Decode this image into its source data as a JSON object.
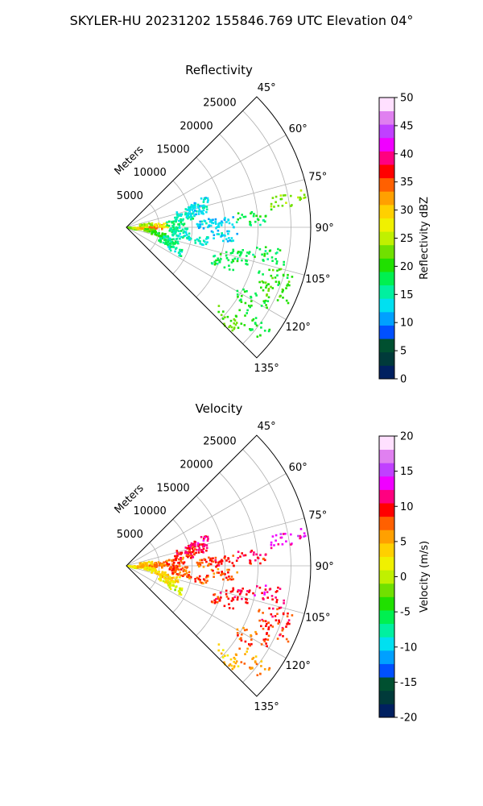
{
  "figure": {
    "title": "SKYLER-HU  20231202  155846.769 UTC Elevation 04°"
  },
  "chart_data": [
    {
      "type": "heatmap",
      "subtype": "polar-sector-ppi",
      "title": "Reflectivity",
      "r_label": "Meters",
      "r_ticks": [
        5000,
        10000,
        15000,
        20000,
        25000
      ],
      "r_lim": [
        0,
        28000
      ],
      "theta_ticks": [
        "45°",
        "60°",
        "75°",
        "90°",
        "105°",
        "120°",
        "135°"
      ],
      "theta_lim": [
        45,
        135
      ],
      "grid": true,
      "colorbar": {
        "label": "Reflectivity dBZ",
        "min": 0,
        "max": 50,
        "ticks": [
          0,
          5,
          10,
          15,
          20,
          25,
          30,
          35,
          40,
          45,
          50
        ],
        "colors": [
          "#002060",
          "#003a3a",
          "#005030",
          "#0050ff",
          "#00a0ff",
          "#00e0f0",
          "#00f0a0",
          "#00f050",
          "#20e000",
          "#70e000",
          "#c0f000",
          "#f0f000",
          "#ffd000",
          "#ffa000",
          "#ff6000",
          "#ff0000",
          "#ff0080",
          "#f000ff",
          "#c040ff",
          "#e080f0",
          "#ffe0ff"
        ]
      },
      "echoes": [
        {
          "azimuth": 100,
          "range": 1000,
          "value": 22
        },
        {
          "azimuth": 95,
          "range": 2000,
          "value": 27
        },
        {
          "azimuth": 92,
          "range": 3000,
          "value": 30
        },
        {
          "azimuth": 90,
          "range": 4500,
          "value": 34
        },
        {
          "azimuth": 87,
          "range": 5500,
          "value": 28
        },
        {
          "azimuth": 83,
          "range": 3000,
          "value": 24
        },
        {
          "azimuth": 98,
          "range": 3500,
          "value": 22
        },
        {
          "azimuth": 102,
          "range": 5000,
          "value": 20
        },
        {
          "azimuth": 85,
          "range": 7500,
          "value": 17
        },
        {
          "azimuth": 80,
          "range": 9000,
          "value": 15
        },
        {
          "azimuth": 75,
          "range": 9500,
          "value": 14
        },
        {
          "azimuth": 72,
          "range": 11500,
          "value": 13
        },
        {
          "azimuth": 77,
          "range": 11000,
          "value": 13
        },
        {
          "azimuth": 93,
          "range": 8000,
          "value": 16
        },
        {
          "azimuth": 97,
          "range": 8500,
          "value": 15
        },
        {
          "azimuth": 105,
          "range": 7000,
          "value": 16
        },
        {
          "azimuth": 110,
          "range": 6500,
          "value": 17
        },
        {
          "azimuth": 115,
          "range": 8000,
          "value": 16
        },
        {
          "azimuth": 100,
          "range": 11000,
          "value": 14
        },
        {
          "azimuth": 88,
          "range": 12500,
          "value": 13
        },
        {
          "azimuth": 87,
          "range": 14500,
          "value": 12
        },
        {
          "azimuth": 95,
          "range": 15000,
          "value": 13
        },
        {
          "azimuth": 86,
          "range": 19000,
          "value": 18
        },
        {
          "azimuth": 104,
          "range": 17000,
          "value": 18
        },
        {
          "azimuth": 110,
          "range": 16000,
          "value": 18
        },
        {
          "azimuth": 101,
          "range": 22000,
          "value": 18
        },
        {
          "azimuth": 108,
          "range": 24000,
          "value": 20
        },
        {
          "azimuth": 114,
          "range": 24500,
          "value": 21
        },
        {
          "azimuth": 120,
          "range": 22000,
          "value": 19
        },
        {
          "azimuth": 127,
          "range": 24000,
          "value": 19
        },
        {
          "azimuth": 133,
          "range": 20500,
          "value": 22
        },
        {
          "azimuth": 80,
          "range": 25000,
          "value": 23
        }
      ]
    },
    {
      "type": "heatmap",
      "subtype": "polar-sector-ppi",
      "title": "Velocity",
      "r_label": "Meters",
      "r_ticks": [
        5000,
        10000,
        15000,
        20000,
        25000
      ],
      "r_lim": [
        0,
        28000
      ],
      "theta_ticks": [
        "45°",
        "60°",
        "75°",
        "90°",
        "105°",
        "120°",
        "135°"
      ],
      "theta_lim": [
        45,
        135
      ],
      "grid": true,
      "colorbar": {
        "label": "Velocity (m/s)",
        "min": -20,
        "max": 20,
        "ticks": [
          -20,
          -15,
          -10,
          -5,
          0,
          5,
          10,
          15,
          20
        ],
        "colors": [
          "#002060",
          "#003a3a",
          "#005030",
          "#0050ff",
          "#00a0ff",
          "#00e0f0",
          "#00f0a0",
          "#00f050",
          "#20e000",
          "#70e000",
          "#c0f000",
          "#f0f000",
          "#ffd000",
          "#ffa000",
          "#ff6000",
          "#ff0000",
          "#ff0080",
          "#f000ff",
          "#c040ff",
          "#e080f0",
          "#ffe0ff"
        ]
      },
      "echoes": [
        {
          "azimuth": 100,
          "range": 1000,
          "value": 1
        },
        {
          "azimuth": 95,
          "range": 2000,
          "value": 3
        },
        {
          "azimuth": 92,
          "range": 3000,
          "value": 5
        },
        {
          "azimuth": 90,
          "range": 4500,
          "value": 6
        },
        {
          "azimuth": 87,
          "range": 5500,
          "value": 7
        },
        {
          "azimuth": 83,
          "range": 3000,
          "value": 4
        },
        {
          "azimuth": 98,
          "range": 3500,
          "value": 2
        },
        {
          "azimuth": 102,
          "range": 5000,
          "value": 3
        },
        {
          "azimuth": 85,
          "range": 7500,
          "value": 8
        },
        {
          "azimuth": 80,
          "range": 9000,
          "value": 9
        },
        {
          "azimuth": 75,
          "range": 9500,
          "value": 10
        },
        {
          "azimuth": 72,
          "range": 11500,
          "value": 11
        },
        {
          "azimuth": 77,
          "range": 11000,
          "value": 10
        },
        {
          "azimuth": 93,
          "range": 8000,
          "value": 8
        },
        {
          "azimuth": 97,
          "range": 8500,
          "value": 8
        },
        {
          "azimuth": 105,
          "range": 7000,
          "value": 4
        },
        {
          "azimuth": 110,
          "range": 6500,
          "value": 2
        },
        {
          "azimuth": 115,
          "range": 8000,
          "value": 1
        },
        {
          "azimuth": 100,
          "range": 11000,
          "value": 8
        },
        {
          "azimuth": 88,
          "range": 12500,
          "value": 8
        },
        {
          "azimuth": 87,
          "range": 14500,
          "value": 9
        },
        {
          "azimuth": 95,
          "range": 15000,
          "value": 8
        },
        {
          "azimuth": 86,
          "range": 19000,
          "value": 10
        },
        {
          "azimuth": 104,
          "range": 17000,
          "value": 10
        },
        {
          "azimuth": 110,
          "range": 16000,
          "value": 9
        },
        {
          "azimuth": 101,
          "range": 22000,
          "value": 11
        },
        {
          "azimuth": 108,
          "range": 24000,
          "value": 9
        },
        {
          "azimuth": 114,
          "range": 24500,
          "value": 9
        },
        {
          "azimuth": 120,
          "range": 22000,
          "value": 8
        },
        {
          "azimuth": 127,
          "range": 24000,
          "value": 6
        },
        {
          "azimuth": 133,
          "range": 20500,
          "value": 4
        },
        {
          "azimuth": 80,
          "range": 25000,
          "value": 13
        }
      ]
    }
  ]
}
